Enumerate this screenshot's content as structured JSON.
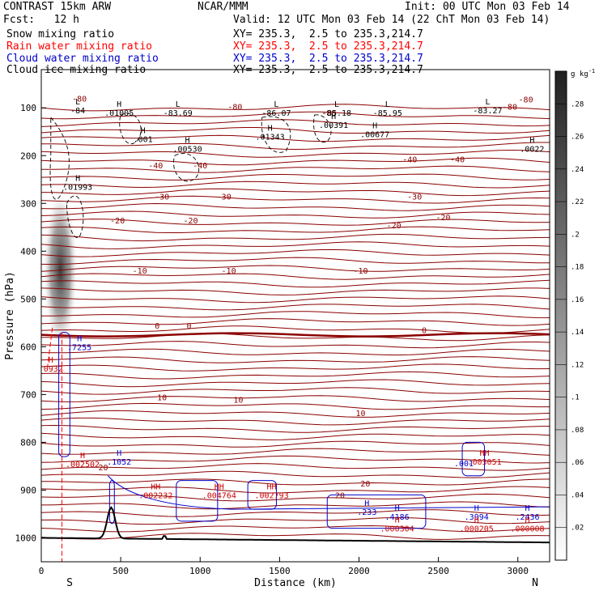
{
  "header": {
    "model": "CONTRAST 15km ARW",
    "org": "NCAR/MMM",
    "init": "Init: 00 UTC Mon 03 Feb 14",
    "fcst": "Fcst:   12 h",
    "valid": "Valid: 12 UTC Mon 03 Feb 14 (22 ChT Mon 03 Feb 14)",
    "fields": [
      {
        "label": "Snow mixing ratio",
        "xy": "XY= 235.3,  2.5 to 235.3,214.7",
        "color": "#000000"
      },
      {
        "label": "Rain water mixing ratio",
        "xy": "XY= 235.3,  2.5 to 235.3,214.7",
        "color": "#ff0000"
      },
      {
        "label": "Cloud water mixing ratio",
        "xy": "XY= 235.3,  2.5 to 235.3,214.7",
        "color": "#0000cc"
      },
      {
        "label": "Cloud ice mixing ratio",
        "xy": "XY= 235.3,  2.5 to 235.3,214.7",
        "color": "#000000"
      }
    ]
  },
  "chart_data": {
    "type": "cross-section",
    "xlabel": "Distance (km)",
    "ylabel": "Pressure (hPa)",
    "xlim": [
      0,
      3200
    ],
    "ylim": [
      1050,
      20
    ],
    "x_ticks": [
      0,
      500,
      1000,
      1500,
      2000,
      2500,
      3000
    ],
    "y_ticks": [
      100,
      200,
      300,
      400,
      500,
      600,
      700,
      800,
      900,
      1000
    ],
    "x_end_labels": {
      "left": "S",
      "right": "N"
    },
    "colorbar": {
      "unit": "g kg",
      "unit_exp": "-1",
      "ticks": [
        ".02",
        ".04",
        ".06",
        ".08",
        ".1",
        ".12",
        ".14",
        ".16",
        ".18",
        ".2",
        ".22",
        ".24",
        ".26",
        ".28"
      ],
      "max": 0.3
    },
    "temperature_labels": [
      "-80",
      "-80",
      "-80",
      "-80",
      "-80",
      "-40",
      "-40",
      "-40",
      "-40",
      "-30",
      "-30",
      "-30",
      "-20",
      "-20",
      "-20",
      "-20",
      "-10",
      "-10",
      "-10",
      "0",
      "0",
      "0",
      "10",
      "10",
      "10",
      "20",
      "20",
      "20"
    ],
    "extrema_labels": [
      {
        "mark": "L",
        "value": "-84"
      },
      {
        "mark": "H",
        "value": ".01005"
      },
      {
        "mark": "L",
        "value": "-83.69"
      },
      {
        "mark": "L",
        "value": "-86.07"
      },
      {
        "mark": "L",
        "value": "-85.18"
      },
      {
        "mark": "L",
        "value": "-85.95"
      },
      {
        "mark": "L",
        "value": "-83.27"
      },
      {
        "mark": "H",
        "value": ".001"
      },
      {
        "mark": "H",
        "value": ".01343"
      },
      {
        "mark": "H",
        "value": ".00391"
      },
      {
        "mark": "H",
        "value": ".00677"
      },
      {
        "mark": "H",
        "value": ".00530"
      },
      {
        "mark": "H",
        "value": ".0022"
      },
      {
        "mark": "H",
        "value": ".01993"
      },
      {
        "mark": "H",
        "value": ".7255"
      },
      {
        "mark": "H",
        "value": ".1052"
      },
      {
        "mark": "H",
        "value": ".002502"
      },
      {
        "mark": "H",
        "value": ".0932"
      },
      {
        "mark": "HH",
        "value": ".002232"
      },
      {
        "mark": "HH",
        "value": ".004764"
      },
      {
        "mark": "HH",
        "value": ".002793"
      },
      {
        "mark": "H",
        "value": ".233"
      },
      {
        "mark": "H",
        "value": ".4186"
      },
      {
        "mark": "H",
        "value": ".3994"
      },
      {
        "mark": "H",
        "value": ".2436"
      },
      {
        "mark": "H",
        "value": ".000304"
      },
      {
        "mark": "H",
        "value": ".000205"
      },
      {
        "mark": "H",
        "value": ".000008"
      },
      {
        "mark": "HH",
        "value": ".003051"
      },
      {
        "mark": "",
        "value": ".001"
      }
    ],
    "snow_core": {
      "x_km": 120,
      "p_top": 320,
      "p_bottom": 560,
      "peak": 0.3
    },
    "terrain_peak": {
      "x_km": 440,
      "p": 935
    }
  }
}
